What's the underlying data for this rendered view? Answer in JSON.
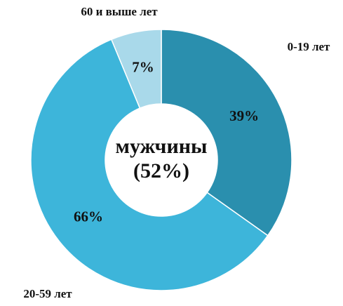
{
  "chart_data": {
    "type": "donut",
    "categories": [
      "0-19 лет",
      "20-59 лет",
      "60 и выше лет"
    ],
    "values": [
      39,
      66,
      7
    ],
    "value_labels": [
      "39%",
      "66%",
      "7%"
    ],
    "colors": [
      "#2a8fae",
      "#3db5da",
      "#a9d9ea"
    ],
    "center_label": [
      "мужчины",
      "(52%)"
    ]
  }
}
